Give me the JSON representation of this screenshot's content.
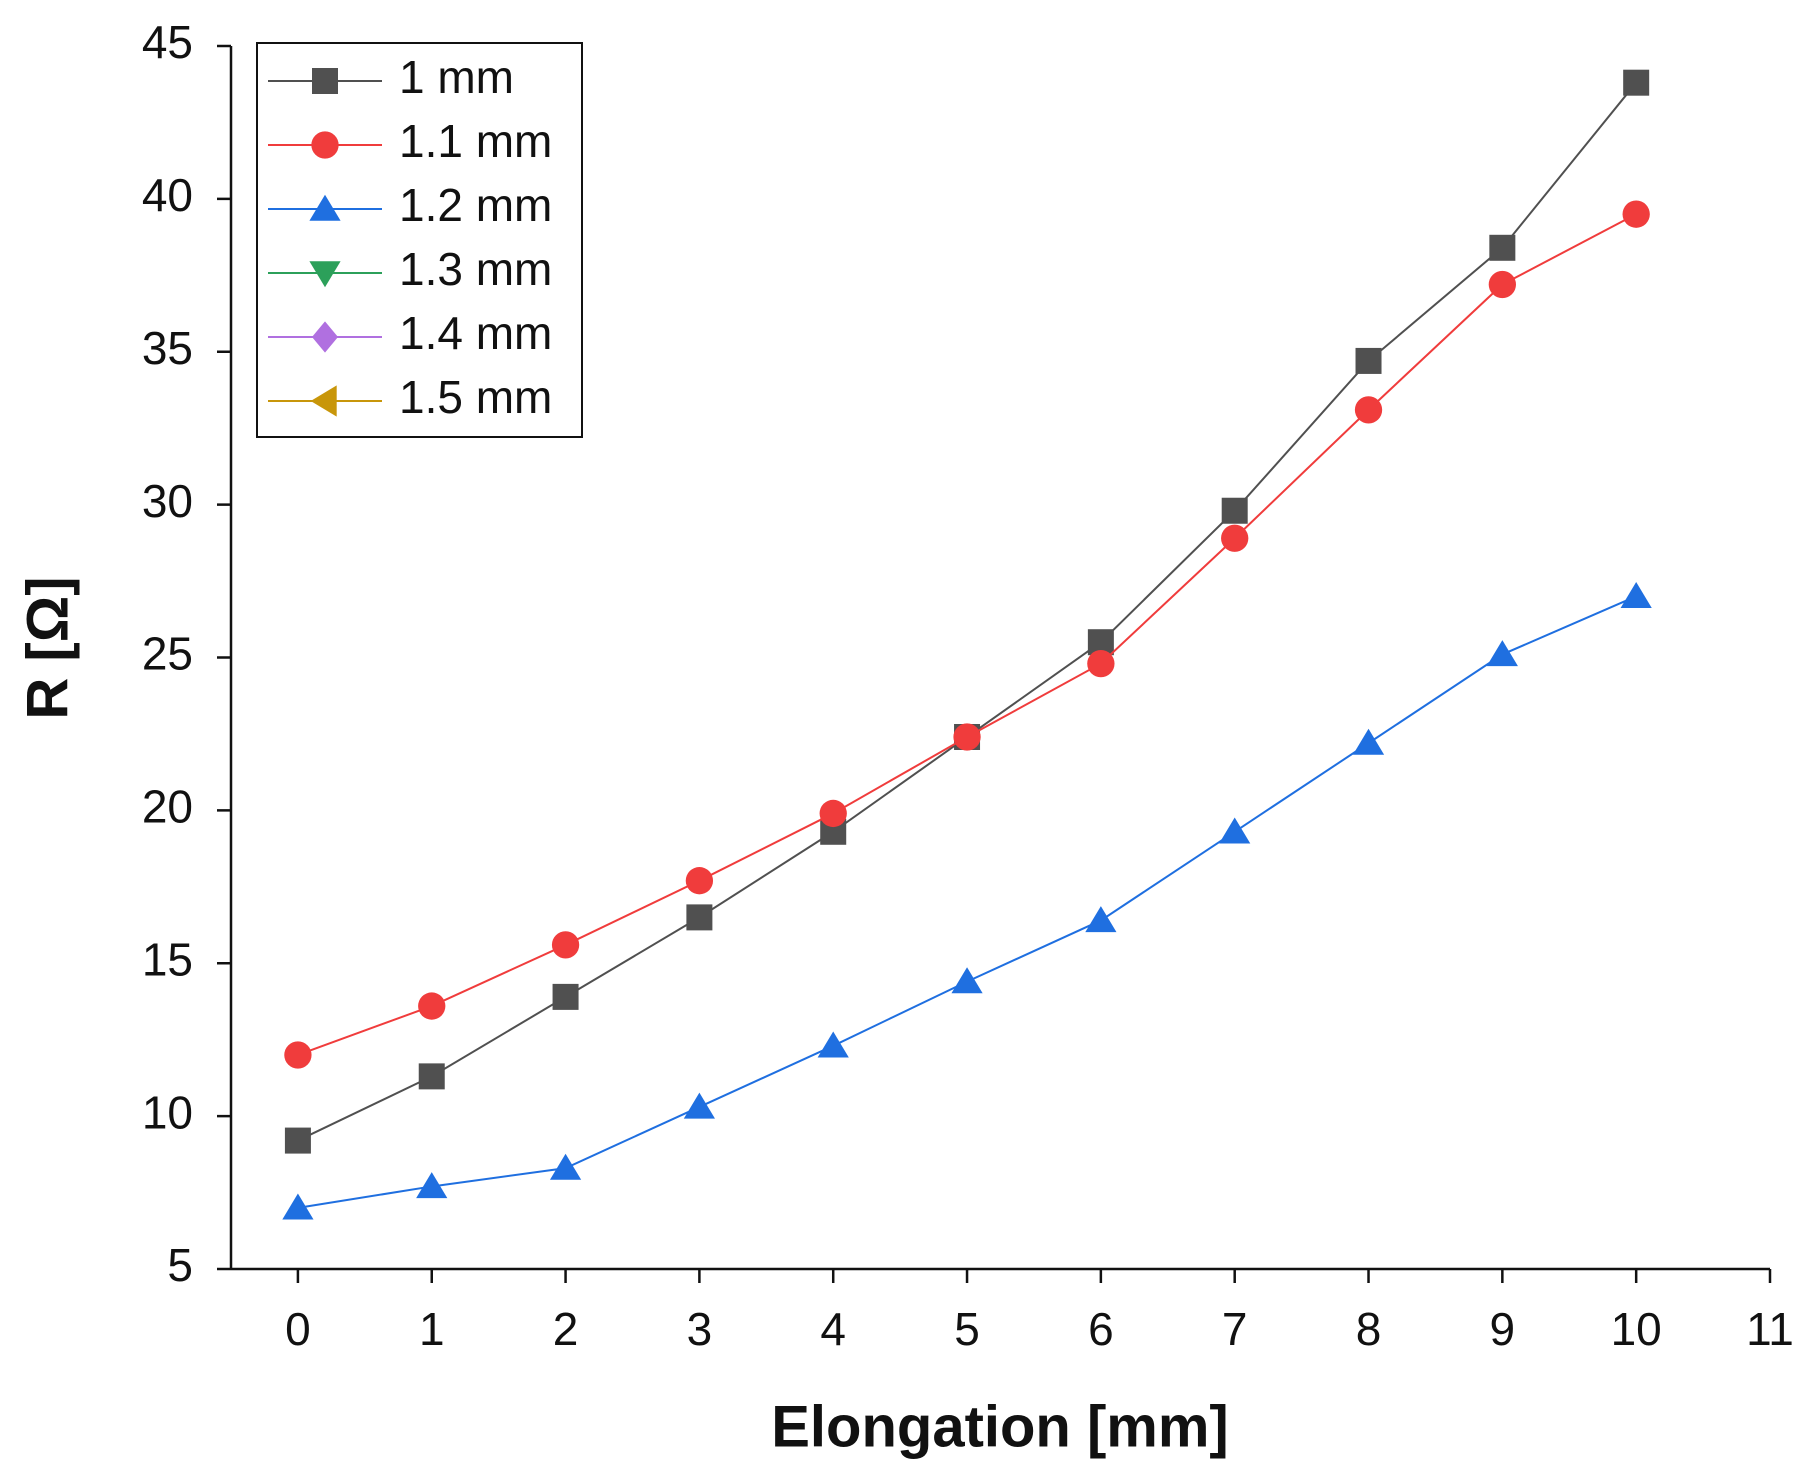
{
  "chart_data": {
    "type": "line",
    "x_label": "Elongation [mm]",
    "y_label": "R [Ω]",
    "x": [
      0,
      1,
      2,
      3,
      4,
      5,
      6,
      7,
      8,
      9,
      10
    ],
    "series": [
      {
        "name": "1 mm",
        "color": "#505050",
        "marker": "square",
        "values": [
          9.2,
          11.3,
          13.9,
          16.5,
          19.3,
          22.4,
          25.5,
          29.8,
          34.7,
          38.4,
          43.8
        ]
      },
      {
        "name": "1.1 mm",
        "color": "#f03c3c",
        "marker": "circle",
        "values": [
          12.0,
          13.6,
          15.6,
          17.7,
          19.9,
          22.4,
          24.8,
          28.9,
          33.1,
          37.2,
          39.5
        ]
      },
      {
        "name": "1.2 mm",
        "color": "#1f6fe0",
        "marker": "triangle-up",
        "values": [
          7.0,
          7.7,
          8.3,
          10.3,
          12.3,
          14.4,
          16.4,
          19.3,
          22.2,
          25.1,
          27.0
        ]
      },
      {
        "name": "1.3 mm",
        "color": "#2ca05a",
        "marker": "triangle-down",
        "values": [
          null,
          null,
          null,
          null,
          null,
          null,
          null,
          null,
          null,
          null,
          null
        ]
      },
      {
        "name": "1.4 mm",
        "color": "#b070e0",
        "marker": "diamond",
        "values": [
          null,
          null,
          null,
          null,
          null,
          null,
          null,
          null,
          null,
          null,
          null
        ]
      },
      {
        "name": "1.5 mm",
        "color": "#c8960a",
        "marker": "triangle-left",
        "values": [
          null,
          null,
          null,
          null,
          null,
          null,
          null,
          null,
          null,
          null,
          null
        ]
      }
    ],
    "xlim": [
      -0.5,
      11
    ],
    "xticks": [
      0,
      1,
      2,
      3,
      4,
      5,
      6,
      7,
      8,
      9,
      10,
      11
    ],
    "ylim": [
      5,
      45
    ],
    "yticks": [
      5,
      10,
      15,
      20,
      25,
      30,
      35,
      40,
      45
    ],
    "grid": false,
    "legend": "upper left"
  }
}
